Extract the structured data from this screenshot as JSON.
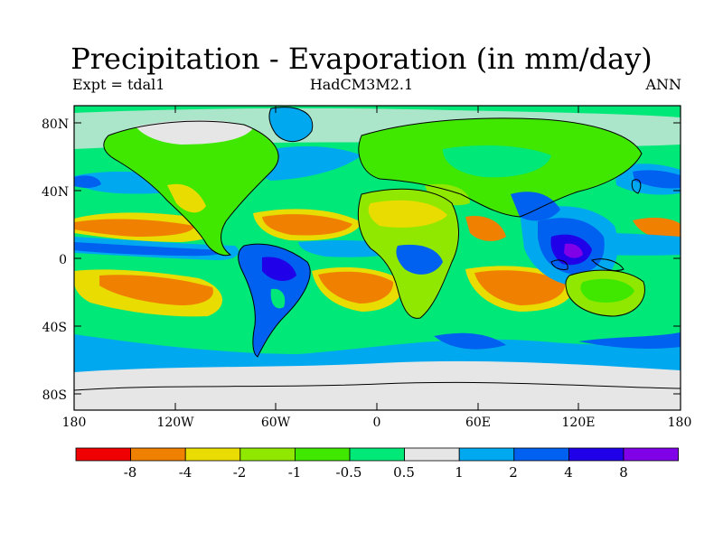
{
  "title": "Precipitation - Evaporation (in mm/day)",
  "subtitle_left": "Expt = tdal1",
  "subtitle_center": "HadCM3M2.1",
  "subtitle_right": "ANN",
  "lat_labels": [
    "80N",
    "40N",
    "0",
    "40S",
    "80S"
  ],
  "lon_labels": [
    "180",
    "120W",
    "60W",
    "0",
    "60E",
    "120E",
    "180"
  ],
  "colorbar": {
    "colors": [
      "#f00000",
      "#f08000",
      "#e8dc00",
      "#90e800",
      "#40e800",
      "#00e878",
      "#e6e6e6",
      "#00a8f0",
      "#0060f0",
      "#2000e8",
      "#8000e8"
    ],
    "labels": [
      "-8",
      "-4",
      "-2",
      "-1",
      "-0.5",
      "0.5",
      "1",
      "2",
      "4",
      "8"
    ]
  },
  "colors": {
    "ocean_background": "#00e878",
    "coastline": "#000000"
  }
}
